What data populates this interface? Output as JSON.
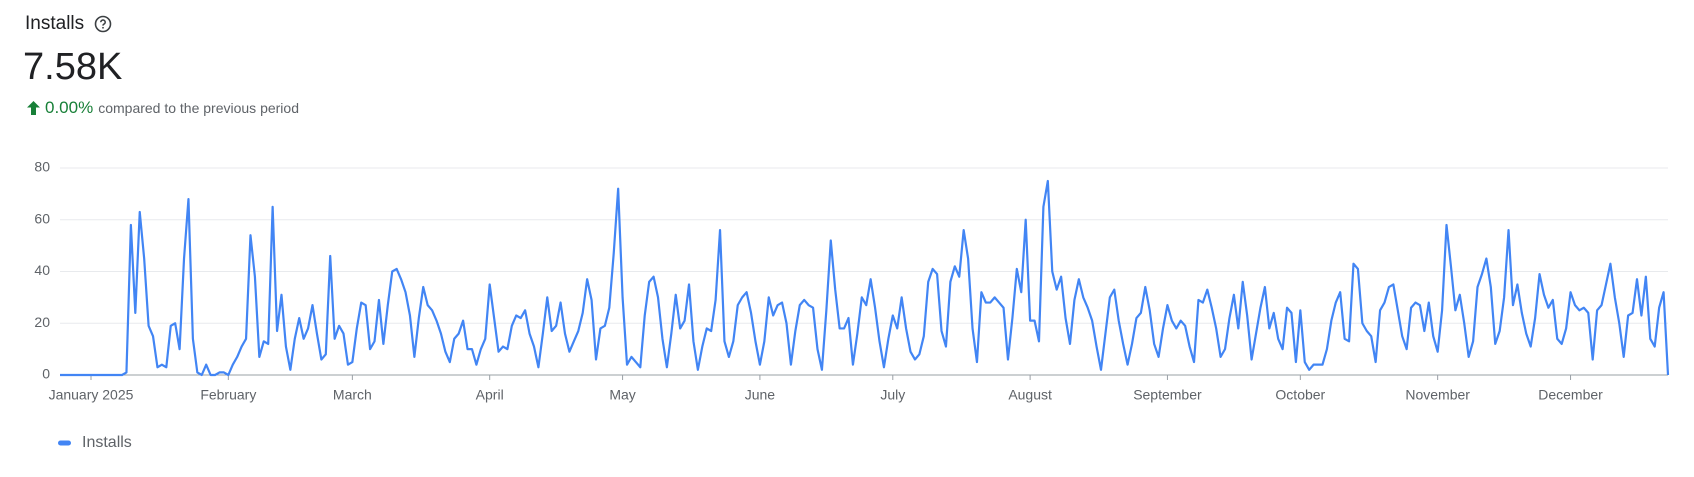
{
  "header": {
    "title": "Installs",
    "value": "7.58K",
    "change": "0.00%",
    "comparison": "compared to the previous period"
  },
  "chart_data": {
    "type": "line",
    "categories": [
      null,
      null,
      null,
      null,
      null,
      null,
      null,
      "January 2025",
      null,
      null,
      null,
      null,
      null,
      null,
      null,
      null,
      null,
      null,
      null,
      null,
      null,
      null,
      null,
      null,
      null,
      null,
      null,
      null,
      null,
      null,
      null,
      null,
      null,
      null,
      null,
      null,
      null,
      null,
      "February",
      null,
      null,
      null,
      null,
      null,
      null,
      null,
      null,
      null,
      null,
      null,
      null,
      null,
      null,
      null,
      null,
      null,
      null,
      null,
      null,
      null,
      null,
      null,
      null,
      null,
      null,
      null,
      "March",
      null,
      null,
      null,
      null,
      null,
      null,
      null,
      null,
      null,
      null,
      null,
      null,
      null,
      null,
      null,
      null,
      null,
      null,
      null,
      null,
      null,
      null,
      null,
      null,
      null,
      null,
      null,
      null,
      null,
      null,
      "April",
      null,
      null,
      null,
      null,
      null,
      null,
      null,
      null,
      null,
      null,
      null,
      null,
      null,
      null,
      null,
      null,
      null,
      null,
      null,
      null,
      null,
      null,
      null,
      null,
      null,
      null,
      null,
      null,
      null,
      "May",
      null,
      null,
      null,
      null,
      null,
      null,
      null,
      null,
      null,
      null,
      null,
      null,
      null,
      null,
      null,
      null,
      null,
      null,
      null,
      null,
      null,
      null,
      null,
      null,
      null,
      null,
      null,
      null,
      null,
      null,
      "June",
      null,
      null,
      null,
      null,
      null,
      null,
      null,
      null,
      null,
      null,
      null,
      null,
      null,
      null,
      null,
      null,
      null,
      null,
      null,
      null,
      null,
      null,
      null,
      null,
      null,
      null,
      null,
      null,
      null,
      "July",
      null,
      null,
      null,
      null,
      null,
      null,
      null,
      null,
      null,
      null,
      null,
      null,
      null,
      null,
      null,
      null,
      null,
      null,
      null,
      null,
      null,
      null,
      null,
      null,
      null,
      null,
      null,
      null,
      null,
      null,
      "August",
      null,
      null,
      null,
      null,
      null,
      null,
      null,
      null,
      null,
      null,
      null,
      null,
      null,
      null,
      null,
      null,
      null,
      null,
      null,
      null,
      null,
      null,
      null,
      null,
      null,
      null,
      null,
      null,
      null,
      null,
      "September",
      null,
      null,
      null,
      null,
      null,
      null,
      null,
      null,
      null,
      null,
      null,
      null,
      null,
      null,
      null,
      null,
      null,
      null,
      null,
      null,
      null,
      null,
      null,
      null,
      null,
      null,
      null,
      null,
      null,
      "October",
      null,
      null,
      null,
      null,
      null,
      null,
      null,
      null,
      null,
      null,
      null,
      null,
      null,
      null,
      null,
      null,
      null,
      null,
      null,
      null,
      null,
      null,
      null,
      null,
      null,
      null,
      null,
      null,
      null,
      null,
      "November",
      null,
      null,
      null,
      null,
      null,
      null,
      null,
      null,
      null,
      null,
      null,
      null,
      null,
      null,
      null,
      null,
      null,
      null,
      null,
      null,
      null,
      null,
      null,
      null,
      null,
      null,
      null,
      null,
      null,
      "December",
      null,
      null,
      null,
      null,
      null,
      null,
      null,
      null,
      null,
      null,
      null,
      null,
      null,
      null,
      null,
      null,
      null,
      null,
      null,
      null,
      null,
      null
    ],
    "series": [
      {
        "name": "Installs",
        "color": "#4285f4",
        "values": [
          0,
          0,
          0,
          0,
          0,
          0,
          0,
          0,
          0,
          0,
          0,
          0,
          0,
          0,
          0,
          1,
          58,
          24,
          63,
          45,
          19,
          15,
          3,
          4,
          3,
          19,
          20,
          10,
          45,
          68,
          14,
          1,
          0,
          4,
          0,
          0,
          1,
          1,
          0,
          4,
          7,
          11,
          14,
          54,
          38,
          7,
          13,
          12,
          65,
          17,
          31,
          11,
          2,
          14,
          22,
          14,
          18,
          27,
          16,
          6,
          8,
          46,
          14,
          19,
          16,
          4,
          5,
          18,
          28,
          27,
          10,
          13,
          29,
          12,
          27,
          40,
          41,
          37,
          32,
          23,
          7,
          22,
          34,
          27,
          25,
          21,
          16,
          9,
          5,
          14,
          16,
          21,
          10,
          10,
          4,
          10,
          14,
          35,
          22,
          9,
          11,
          10,
          19,
          23,
          22,
          25,
          16,
          11,
          3,
          16,
          30,
          17,
          19,
          28,
          16,
          9,
          13,
          17,
          24,
          37,
          29,
          6,
          18,
          19,
          26,
          47,
          72,
          30,
          4,
          7,
          5,
          3,
          23,
          36,
          38,
          30,
          14,
          3,
          16,
          31,
          18,
          21,
          35,
          13,
          2,
          11,
          18,
          17,
          29,
          56,
          13,
          7,
          13,
          27,
          30,
          32,
          24,
          13,
          4,
          13,
          30,
          23,
          27,
          28,
          20,
          4,
          17,
          27,
          29,
          27,
          26,
          10,
          2,
          25,
          52,
          33,
          18,
          18,
          22,
          4,
          16,
          30,
          27,
          37,
          26,
          13,
          3,
          14,
          23,
          18,
          30,
          18,
          9,
          6,
          8,
          15,
          36,
          41,
          39,
          17,
          11,
          36,
          42,
          38,
          56,
          45,
          18,
          5,
          32,
          28,
          28,
          30,
          28,
          26,
          6,
          22,
          41,
          32,
          60,
          21,
          21,
          13,
          65,
          75,
          40,
          33,
          38,
          22,
          12,
          29,
          37,
          30,
          26,
          21,
          11,
          2,
          16,
          30,
          33,
          21,
          12,
          4,
          12,
          22,
          24,
          34,
          25,
          12,
          7,
          18,
          27,
          21,
          18,
          21,
          19,
          11,
          5,
          29,
          28,
          33,
          26,
          18,
          7,
          10,
          22,
          31,
          18,
          36,
          23,
          6,
          16,
          26,
          34,
          18,
          24,
          14,
          10,
          26,
          24,
          5,
          25,
          5,
          2,
          4,
          4,
          4,
          10,
          21,
          28,
          32,
          14,
          13,
          43,
          41,
          20,
          17,
          15,
          5,
          25,
          28,
          34,
          35,
          25,
          15,
          10,
          26,
          28,
          27,
          17,
          28,
          15,
          9,
          25,
          58,
          42,
          25,
          31,
          20,
          7,
          13,
          34,
          39,
          45,
          34,
          12,
          17,
          30,
          56,
          27,
          35,
          24,
          16,
          11,
          22,
          39,
          31,
          26,
          29,
          14,
          12,
          18,
          32,
          27,
          25,
          26,
          24,
          6,
          25,
          27,
          35,
          43,
          30,
          20,
          7,
          23,
          24,
          37,
          23,
          38,
          14,
          11,
          26,
          32,
          0
        ]
      }
    ],
    "ylim": [
      0,
      80
    ],
    "yticks": [
      0,
      20,
      40,
      60,
      80
    ],
    "grid": true
  }
}
